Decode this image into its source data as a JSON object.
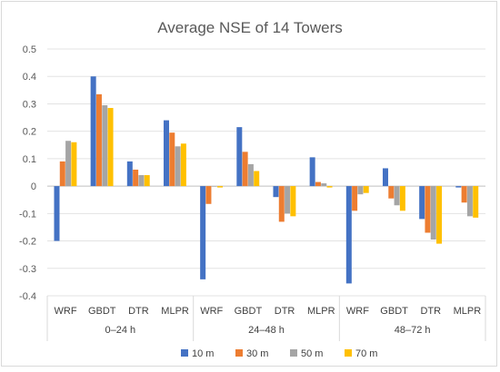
{
  "chart_data": {
    "type": "bar",
    "title": "Average NSE of 14 Towers",
    "xlabel": "",
    "ylabel": "",
    "ylim": [
      -0.4,
      0.5
    ],
    "yticks": [
      "0.5",
      "0.4",
      "0.3",
      "0.2",
      "0.1",
      "0",
      "-0.1",
      "-0.2",
      "-0.3",
      "-0.4"
    ],
    "ytick_values": [
      0.5,
      0.4,
      0.3,
      0.2,
      0.1,
      0,
      -0.1,
      -0.2,
      -0.3,
      -0.4
    ],
    "grid": true,
    "legend_position": "bottom",
    "groups": [
      {
        "label": "0–24 h",
        "categories": [
          "WRF",
          "GBDT",
          "DTR",
          "MLPR"
        ]
      },
      {
        "label": "24–48 h",
        "categories": [
          "WRF",
          "GBDT",
          "DTR",
          "MLPR"
        ]
      },
      {
        "label": "48–72 h",
        "categories": [
          "WRF",
          "GBDT",
          "DTR",
          "MLPR"
        ]
      }
    ],
    "categories": [
      "WRF",
      "GBDT",
      "DTR",
      "MLPR",
      "WRF",
      "GBDT",
      "DTR",
      "MLPR",
      "WRF",
      "GBDT",
      "DTR",
      "MLPR"
    ],
    "series": [
      {
        "name": "10 m",
        "color": "#4472c4",
        "values": [
          -0.2,
          0.4,
          0.09,
          0.24,
          -0.34,
          0.215,
          -0.04,
          0.105,
          -0.355,
          0.065,
          -0.12,
          -0.005
        ]
      },
      {
        "name": "30 m",
        "color": "#ed7d31",
        "values": [
          0.09,
          0.335,
          0.06,
          0.195,
          -0.065,
          0.125,
          -0.13,
          0.015,
          -0.09,
          -0.045,
          -0.17,
          -0.06
        ]
      },
      {
        "name": "50 m",
        "color": "#a5a5a5",
        "values": [
          0.165,
          0.295,
          0.04,
          0.145,
          0.0,
          0.08,
          -0.1,
          0.01,
          -0.03,
          -0.07,
          -0.195,
          -0.11
        ]
      },
      {
        "name": "70 m",
        "color": "#ffc000",
        "values": [
          0.16,
          0.285,
          0.04,
          0.155,
          -0.005,
          0.055,
          -0.11,
          -0.005,
          -0.025,
          -0.09,
          -0.21,
          -0.115
        ]
      }
    ]
  }
}
